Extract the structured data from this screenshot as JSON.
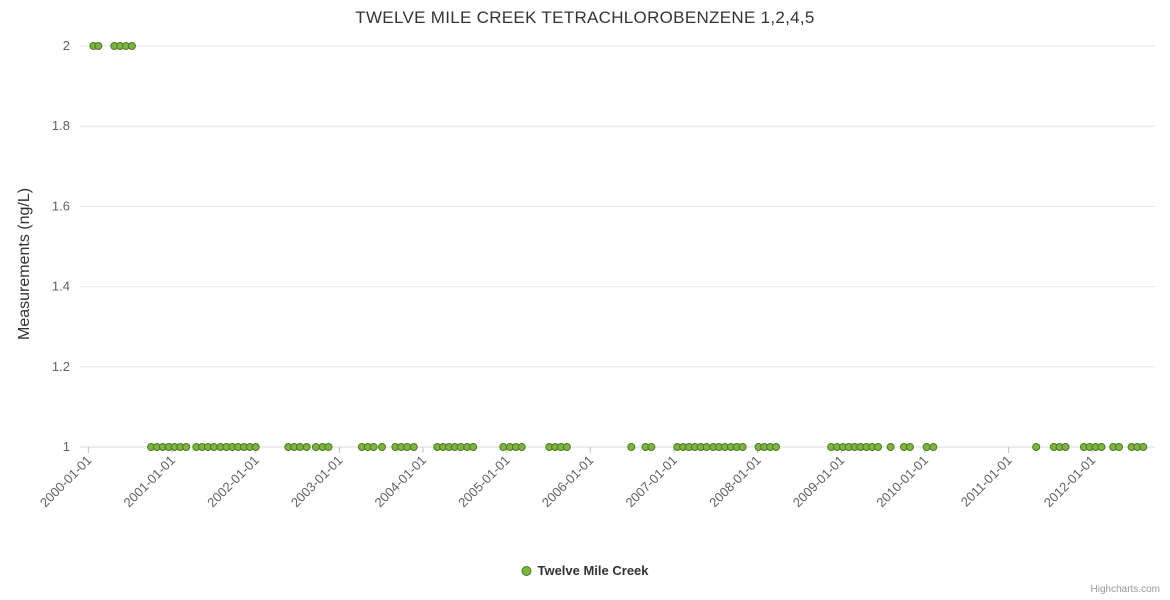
{
  "credits": "Highcharts.com",
  "colors": {
    "point_fill": "#7cb342",
    "point_stroke": "#4e7a1e",
    "grid": "#e6e6e6",
    "axis_line": "#d8d8d8",
    "tick": "#c0c0c0",
    "label": "#606060",
    "title_text": "#333333"
  },
  "chart_data": {
    "type": "scatter",
    "title": "TWELVE MILE CREEK TETRACHLOROBENZENE 1,2,4,5",
    "xlabel": "",
    "ylabel": "Measurements (ng/L)",
    "ylim": [
      1,
      2
    ],
    "xlim": [
      1999.9,
      2012.75
    ],
    "y_ticks": [
      1,
      1.2,
      1.4,
      1.6,
      1.8,
      2
    ],
    "x_ticks": [
      {
        "value": 2000,
        "label": "2000-01-01"
      },
      {
        "value": 2001,
        "label": "2001-01-01"
      },
      {
        "value": 2002,
        "label": "2002-01-01"
      },
      {
        "value": 2003,
        "label": "2003-01-01"
      },
      {
        "value": 2004,
        "label": "2004-01-01"
      },
      {
        "value": 2005,
        "label": "2005-01-01"
      },
      {
        "value": 2006,
        "label": "2006-01-01"
      },
      {
        "value": 2007,
        "label": "2007-01-01"
      },
      {
        "value": 2008,
        "label": "2008-01-01"
      },
      {
        "value": 2009,
        "label": "2009-01-01"
      },
      {
        "value": 2010,
        "label": "2010-01-01"
      },
      {
        "value": 2011,
        "label": "2011-01-01"
      },
      {
        "value": 2012,
        "label": "2012-01-01"
      }
    ],
    "legend_position": "bottom-center",
    "grid": "horizontal-only",
    "series": [
      {
        "name": "Twelve Mile Creek",
        "points": [
          [
            2000.06,
            2
          ],
          [
            2000.12,
            2
          ],
          [
            2000.31,
            2
          ],
          [
            2000.38,
            2
          ],
          [
            2000.45,
            2
          ],
          [
            2000.52,
            2
          ],
          [
            2000.75,
            1
          ],
          [
            2000.82,
            1
          ],
          [
            2000.89,
            1
          ],
          [
            2000.96,
            1
          ],
          [
            2001.03,
            1
          ],
          [
            2001.1,
            1
          ],
          [
            2001.17,
            1
          ],
          [
            2001.29,
            1
          ],
          [
            2001.36,
            1
          ],
          [
            2001.43,
            1
          ],
          [
            2001.5,
            1
          ],
          [
            2001.58,
            1
          ],
          [
            2001.65,
            1
          ],
          [
            2001.72,
            1
          ],
          [
            2001.79,
            1
          ],
          [
            2001.86,
            1
          ],
          [
            2001.93,
            1
          ],
          [
            2002.0,
            1
          ],
          [
            2002.39,
            1
          ],
          [
            2002.46,
            1
          ],
          [
            2002.53,
            1
          ],
          [
            2002.61,
            1
          ],
          [
            2002.72,
            1
          ],
          [
            2002.8,
            1
          ],
          [
            2002.87,
            1
          ],
          [
            2003.27,
            1
          ],
          [
            2003.34,
            1
          ],
          [
            2003.41,
            1
          ],
          [
            2003.51,
            1
          ],
          [
            2003.67,
            1
          ],
          [
            2003.74,
            1
          ],
          [
            2003.81,
            1
          ],
          [
            2003.89,
            1
          ],
          [
            2004.17,
            1
          ],
          [
            2004.24,
            1
          ],
          [
            2004.31,
            1
          ],
          [
            2004.38,
            1
          ],
          [
            2004.45,
            1
          ],
          [
            2004.53,
            1
          ],
          [
            2004.6,
            1
          ],
          [
            2004.96,
            1
          ],
          [
            2005.04,
            1
          ],
          [
            2005.11,
            1
          ],
          [
            2005.18,
            1
          ],
          [
            2005.51,
            1
          ],
          [
            2005.58,
            1
          ],
          [
            2005.65,
            1
          ],
          [
            2005.72,
            1
          ],
          [
            2006.49,
            1
          ],
          [
            2006.66,
            1
          ],
          [
            2006.73,
            1
          ],
          [
            2007.04,
            1
          ],
          [
            2007.11,
            1
          ],
          [
            2007.18,
            1
          ],
          [
            2007.25,
            1
          ],
          [
            2007.32,
            1
          ],
          [
            2007.39,
            1
          ],
          [
            2007.47,
            1
          ],
          [
            2007.54,
            1
          ],
          [
            2007.61,
            1
          ],
          [
            2007.68,
            1
          ],
          [
            2007.75,
            1
          ],
          [
            2007.82,
            1
          ],
          [
            2008.01,
            1
          ],
          [
            2008.08,
            1
          ],
          [
            2008.15,
            1
          ],
          [
            2008.22,
            1
          ],
          [
            2008.88,
            1
          ],
          [
            2008.95,
            1
          ],
          [
            2009.02,
            1
          ],
          [
            2009.09,
            1
          ],
          [
            2009.16,
            1
          ],
          [
            2009.23,
            1
          ],
          [
            2009.3,
            1
          ],
          [
            2009.37,
            1
          ],
          [
            2009.44,
            1
          ],
          [
            2009.59,
            1
          ],
          [
            2009.75,
            1
          ],
          [
            2009.82,
            1
          ],
          [
            2010.02,
            1
          ],
          [
            2010.1,
            1
          ],
          [
            2011.33,
            1
          ],
          [
            2011.54,
            1
          ],
          [
            2011.61,
            1
          ],
          [
            2011.68,
            1
          ],
          [
            2011.9,
            1
          ],
          [
            2011.97,
            1
          ],
          [
            2012.04,
            1
          ],
          [
            2012.11,
            1
          ],
          [
            2012.25,
            1
          ],
          [
            2012.32,
            1
          ],
          [
            2012.47,
            1
          ],
          [
            2012.54,
            1
          ],
          [
            2012.61,
            1
          ]
        ]
      }
    ]
  }
}
